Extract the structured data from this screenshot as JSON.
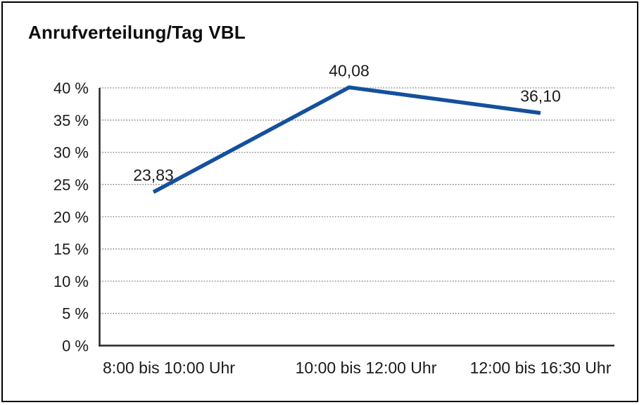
{
  "window": {
    "background": "#ffffff",
    "frame_border_color": "#000000"
  },
  "chart_data": {
    "type": "line",
    "title": "Anrufverteilung/Tag VBL",
    "categories": [
      "8:00 bis 10:00 Uhr",
      "10:00 bis 12:00 Uhr",
      "12:00 bis 16:30 Uhr"
    ],
    "series": [
      {
        "values": [
          23.83,
          40.08,
          36.1
        ],
        "value_labels": [
          "23,83",
          "40,08",
          "36,10"
        ],
        "color": "#15509E",
        "line_width": 5.5
      }
    ],
    "xlabel": "",
    "ylabel": "",
    "ylim": [
      0,
      40
    ],
    "ytick_step": 5,
    "ytick_labels": [
      "0 %",
      "5 %",
      "10 %",
      "15 %",
      "20 %",
      "25 %",
      "30 %",
      "35 %",
      "40 %"
    ],
    "grid": {
      "horizontal": true,
      "style": "dotted",
      "color": "#777777"
    },
    "legend": {
      "visible": false
    },
    "axis_color": "#262626",
    "text_color": "#1a1a1a"
  }
}
